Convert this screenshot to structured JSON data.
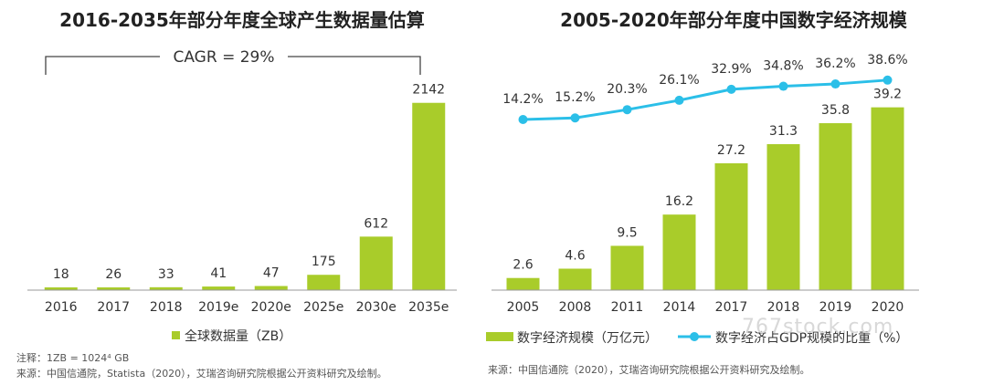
{
  "chart_data": [
    {
      "type": "bar",
      "title": "2016-2035年部分年度全球产生数据量估算",
      "categories": [
        "2016",
        "2017",
        "2018",
        "2019e",
        "2020e",
        "2025e",
        "2030e",
        "2035e"
      ],
      "values": [
        18,
        26,
        33,
        41,
        47,
        175,
        612,
        2142
      ],
      "ylim": [
        0,
        2400
      ],
      "annotation": "CAGR = 29%",
      "legend": {
        "position": "bottom",
        "entries": [
          "全球数据量（ZB）"
        ]
      },
      "grid": false,
      "bar_color": "#a9cc2a",
      "notes": [
        "注释：1ZB = 1024⁴ GB",
        "来源：中国信通院，Statista（2020），艾瑞咨询研究院根据公开资料研究及绘制。"
      ]
    },
    {
      "type": "bar",
      "title": "2005-2020年部分年度中国数字经济规模",
      "categories": [
        "2005",
        "2008",
        "2011",
        "2014",
        "2017",
        "2018",
        "2019",
        "2020"
      ],
      "series": [
        {
          "name": "数字经济规模（万亿元）",
          "type": "bar",
          "values": [
            2.6,
            4.6,
            9.5,
            16.2,
            27.2,
            31.3,
            35.8,
            39.2
          ],
          "color": "#a9cc2a"
        },
        {
          "name": "数字经济占GDP规模的比重（%）",
          "type": "line",
          "values": [
            14.2,
            15.2,
            20.3,
            26.1,
            32.9,
            34.8,
            36.2,
            38.6
          ],
          "labels": [
            "14.2%",
            "15.2%",
            "20.3%",
            "26.1%",
            "32.9%",
            "34.8%",
            "36.2%",
            "38.6%"
          ],
          "color": "#2bbfe8"
        }
      ],
      "ylim_bar": [
        0,
        45
      ],
      "legend": {
        "position": "bottom",
        "entries": [
          "数字经济规模（万亿元）",
          "数字经济占GDP规模的比重（%）"
        ]
      },
      "grid": false,
      "notes": [
        "来源：中国信通院（2020），艾瑞咨询研究院根据公开资料研究及绘制。"
      ]
    }
  ],
  "watermark": "767stock.com"
}
